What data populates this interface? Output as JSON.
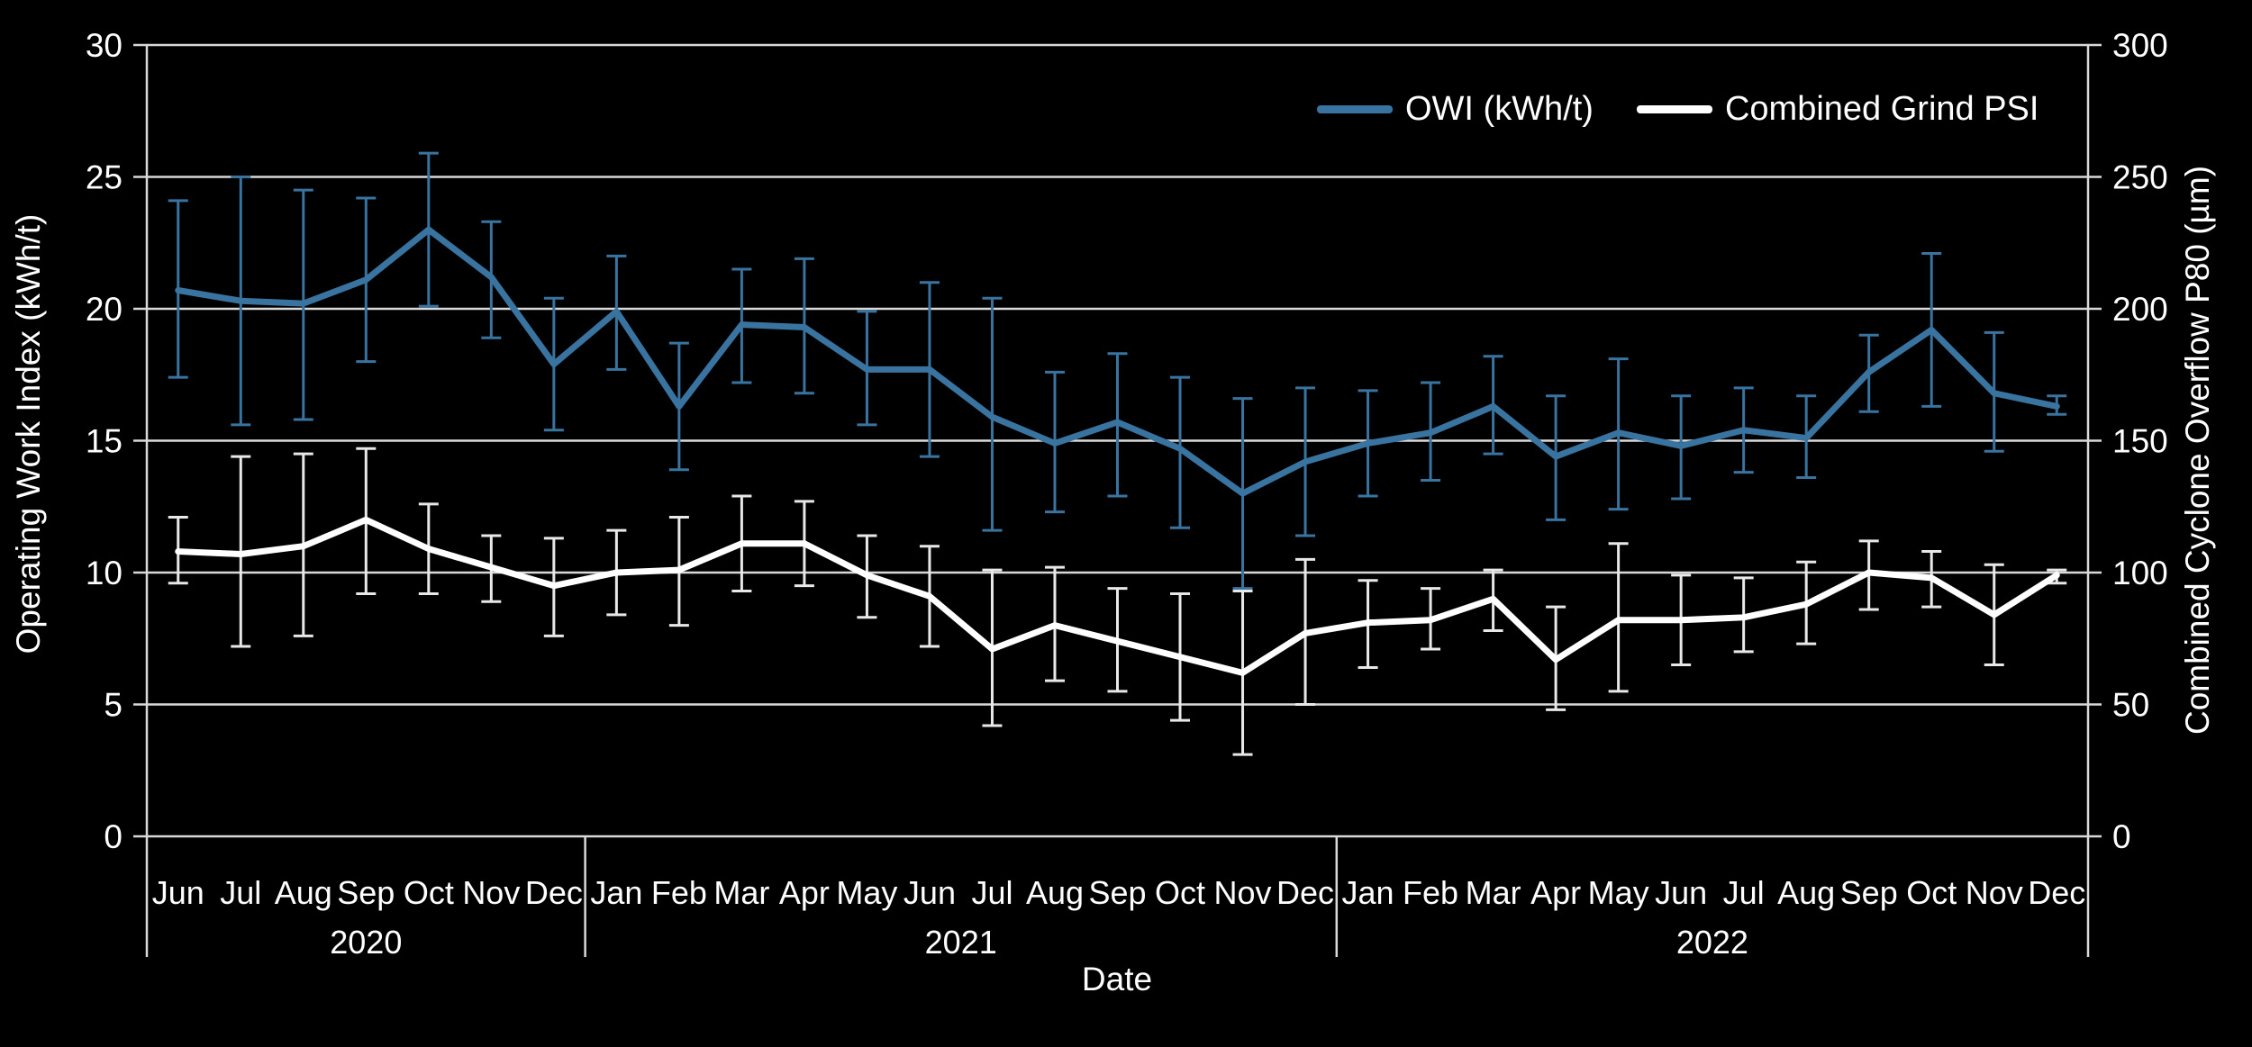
{
  "legend": {
    "items": [
      {
        "label": "OWI (kWh/t)",
        "color": "#3973A0"
      },
      {
        "label": "Combined Grind PSI",
        "color": "#F2F2F2"
      }
    ]
  },
  "colors": {
    "background": "#000000",
    "grid": "#D9D9D9",
    "axis": "#D9D9D9",
    "owi_series": "#3973A0",
    "psi_series": "#FFFFFF",
    "psi_error_bars": "#E8E8E8",
    "text": "#FFFFFF"
  },
  "chart_data": {
    "type": "line",
    "grid": true,
    "legend_position": "top-right",
    "x": {
      "title": "Date",
      "groups": [
        {
          "year": "2020",
          "months": [
            "Jun",
            "Jul",
            "Aug",
            "Sep",
            "Oct",
            "Nov",
            "Dec"
          ]
        },
        {
          "year": "2021",
          "months": [
            "Jan",
            "Feb",
            "Mar",
            "Apr",
            "May",
            "Jun",
            "Jul",
            "Aug",
            "Sep",
            "Oct",
            "Nov",
            "Dec"
          ]
        },
        {
          "year": "2022",
          "months": [
            "Jan",
            "Feb",
            "Mar",
            "Apr",
            "May",
            "Jun",
            "Jul",
            "Aug",
            "Sep",
            "Oct",
            "Nov",
            "Dec"
          ]
        }
      ]
    },
    "y_left": {
      "title": "Operating Work Index (kWh/t)",
      "min": 0,
      "max": 30,
      "step": 5,
      "ticks": [
        30,
        25,
        20,
        15,
        10,
        5,
        0
      ]
    },
    "y_right": {
      "title": "Combined Cyclone Overflow P80 (µm)",
      "min": 0,
      "max": 300,
      "step": 50,
      "ticks": [
        300,
        250,
        200,
        150,
        100,
        50,
        0
      ]
    },
    "series": [
      {
        "name": "OWI (kWh/t)",
        "axis": "left",
        "color": "#3973A0",
        "error_color": "#3973A0",
        "values": [
          20.7,
          20.3,
          20.2,
          21.1,
          23.0,
          21.2,
          17.9,
          19.9,
          16.3,
          19.4,
          19.3,
          17.7,
          17.7,
          15.9,
          14.9,
          15.7,
          14.7,
          13.0,
          14.2,
          14.9,
          15.3,
          16.3,
          14.4,
          15.3,
          14.8,
          15.4,
          15.1,
          17.6,
          19.2,
          16.8,
          16.3
        ],
        "err_lo": [
          17.4,
          15.6,
          15.8,
          18.0,
          20.1,
          18.9,
          15.4,
          17.7,
          13.9,
          17.2,
          16.8,
          15.6,
          14.4,
          11.6,
          12.3,
          12.9,
          11.7,
          9.4,
          11.4,
          12.9,
          13.5,
          14.5,
          12.0,
          12.4,
          12.8,
          13.8,
          13.6,
          16.1,
          16.3,
          14.6,
          16.0
        ],
        "err_hi": [
          24.1,
          25.0,
          24.5,
          24.2,
          25.9,
          23.3,
          20.4,
          22.0,
          18.7,
          21.5,
          21.9,
          19.9,
          21.0,
          20.4,
          17.6,
          18.3,
          17.4,
          16.6,
          17.0,
          16.9,
          17.2,
          18.2,
          16.7,
          18.1,
          16.7,
          17.0,
          16.7,
          19.0,
          22.1,
          19.1,
          16.7
        ]
      },
      {
        "name": "Combined Grind PSI",
        "axis": "right",
        "color": "#FFFFFF",
        "error_color": "#E8E8E8",
        "values": [
          108,
          107,
          110,
          120,
          109,
          102,
          95,
          100,
          101,
          111,
          111,
          99,
          91,
          71,
          80,
          74,
          68,
          62,
          77,
          81,
          82,
          90,
          67,
          82,
          82,
          83,
          88,
          100,
          98,
          84,
          99
        ],
        "err_lo": [
          96,
          72,
          76,
          92,
          92,
          89,
          76,
          84,
          80,
          93,
          95,
          83,
          72,
          42,
          59,
          55,
          44,
          31,
          50,
          64,
          71,
          78,
          48,
          55,
          65,
          70,
          73,
          86,
          87,
          65,
          96
        ],
        "err_hi": [
          121,
          144,
          145,
          147,
          126,
          114,
          113,
          116,
          121,
          129,
          127,
          114,
          110,
          101,
          102,
          94,
          92,
          93,
          105,
          97,
          94,
          101,
          87,
          111,
          99,
          98,
          104,
          112,
          108,
          103,
          101
        ]
      }
    ]
  }
}
